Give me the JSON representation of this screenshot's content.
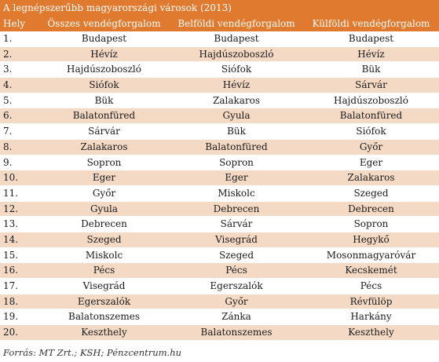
{
  "title": "A legnépszerűbb magyarországi városok (2013)",
  "headers": [
    "Hely",
    "Összes vendégforgalom",
    "Belföldi vendégforgalom",
    "Külföldi vendégforgalom"
  ],
  "rows": [
    [
      "1.",
      "Budapest",
      "Budapest",
      "Budapest"
    ],
    [
      "2.",
      "Hévíz",
      "Hajdúszoboszló",
      "Hévíz"
    ],
    [
      "3.",
      "Hajdúszoboszló",
      "Siófok",
      "Bük"
    ],
    [
      "4.",
      "Siófok",
      "Hévíz",
      "Sárvár"
    ],
    [
      "5.",
      "Bük",
      "Zalakaros",
      "Hajdúszoboszló"
    ],
    [
      "6.",
      "Balatonfüred",
      "Gyula",
      "Balatonfüred"
    ],
    [
      "7.",
      "Sárvár",
      "Bük",
      "Siófok"
    ],
    [
      "8.",
      "Zalakaros",
      "Balatonfüred",
      "Győr"
    ],
    [
      "9.",
      "Sopron",
      "Sopron",
      "Eger"
    ],
    [
      "10.",
      "Eger",
      "Eger",
      "Zalakaros"
    ],
    [
      "11.",
      "Győr",
      "Miskolc",
      "Szeged"
    ],
    [
      "12.",
      "Gyula",
      "Debrecen",
      "Debrecen"
    ],
    [
      "13.",
      "Debrecen",
      "Sárvár",
      "Sopron"
    ],
    [
      "14.",
      "Szeged",
      "Visegrád",
      "Hegykő"
    ],
    [
      "15.",
      "Miskolc",
      "Szeged",
      "Mosonmagyaróvár"
    ],
    [
      "16.",
      "Pécs",
      "Pécs",
      "Kecskemét"
    ],
    [
      "17.",
      "Visegrád",
      "Egerszalók",
      "Pécs"
    ],
    [
      "18.",
      "Egerszalók",
      "Győr",
      "Révfülöp"
    ],
    [
      "19.",
      "Balatonszemes",
      "Zánka",
      "Harkány"
    ],
    [
      "20.",
      "Keszthely",
      "Balatonszemes",
      "Keszthely"
    ]
  ],
  "source": "Forrás: MT Zrt.; KSH; Pénzcentrum.hu",
  "colors": {
    "header_bg": "#e07a2e",
    "header_text": "#ffffff",
    "stripe": "#f4d9c4",
    "row_bg": "#ffffff"
  }
}
